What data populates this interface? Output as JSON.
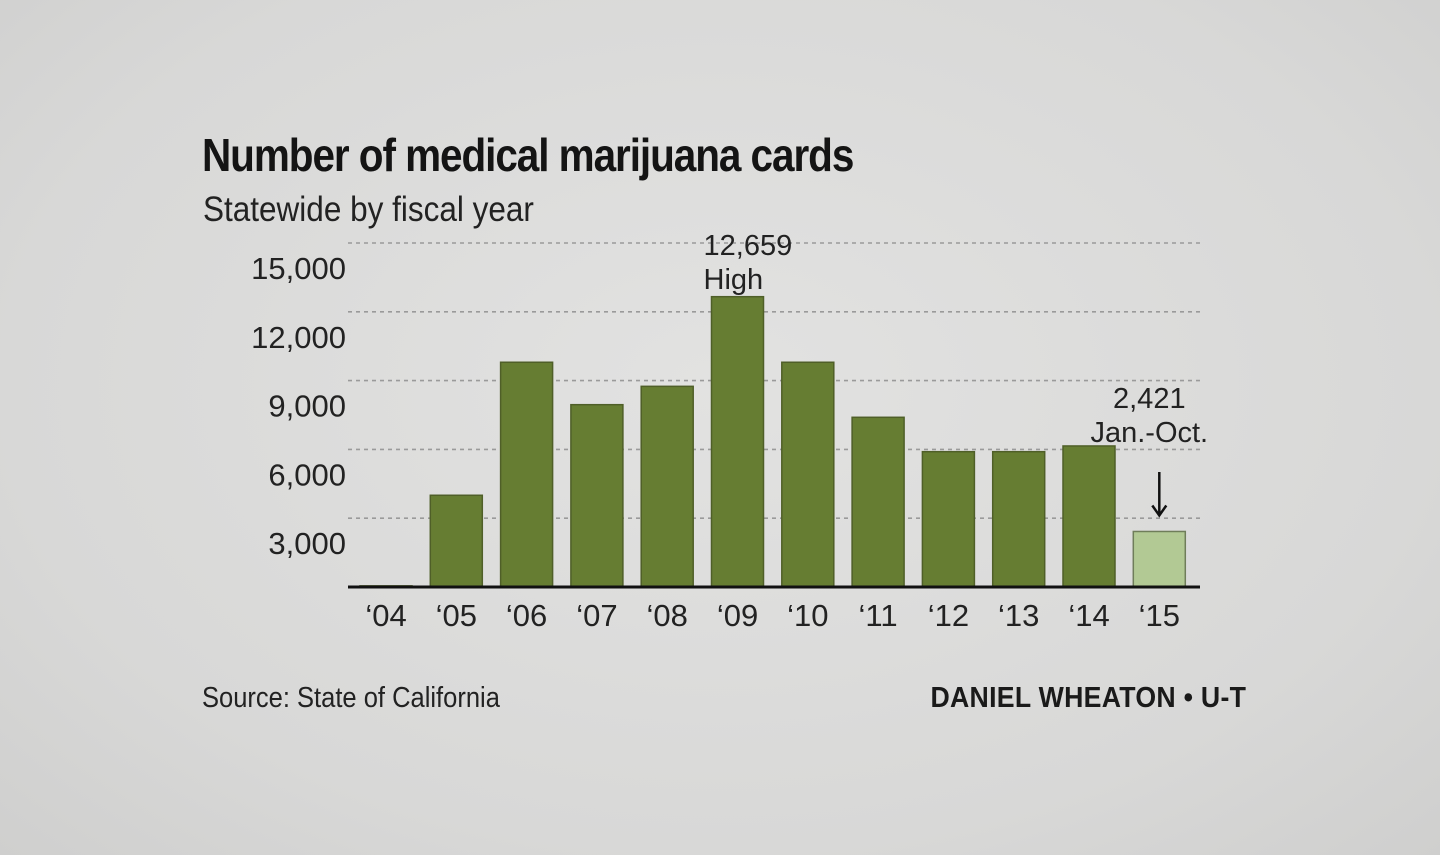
{
  "chart_data": {
    "type": "bar",
    "title": "Number of medical marijuana cards",
    "subtitle": "Statewide by fiscal year",
    "categories": [
      "‘04",
      "‘05",
      "‘06",
      "‘07",
      "‘08",
      "‘09",
      "‘10",
      "‘11",
      "‘12",
      "‘13",
      "‘14",
      "‘15"
    ],
    "values": [
      50,
      4000,
      9800,
      7950,
      8750,
      12659,
      9800,
      7400,
      5900,
      5900,
      6150,
      2421
    ],
    "ylim": [
      0,
      15000
    ],
    "yticks": [
      3000,
      6000,
      9000,
      12000,
      15000
    ],
    "ytick_labels": [
      "3,000",
      "6,000",
      "9,000",
      "12,000",
      "15,000"
    ],
    "grid": true,
    "colors": {
      "bar": "#667d32",
      "bar_partial": "#b2c994",
      "bar_stroke": "#4f5f28"
    },
    "annotations": [
      {
        "category_index": 5,
        "lines": [
          "12,659",
          "High"
        ]
      },
      {
        "category_index": 11,
        "lines": [
          "2,421",
          "Jan.-Oct."
        ],
        "arrow": true
      }
    ],
    "source": "Source: State of California",
    "credit": "DANIEL WHEATON • U-T"
  }
}
